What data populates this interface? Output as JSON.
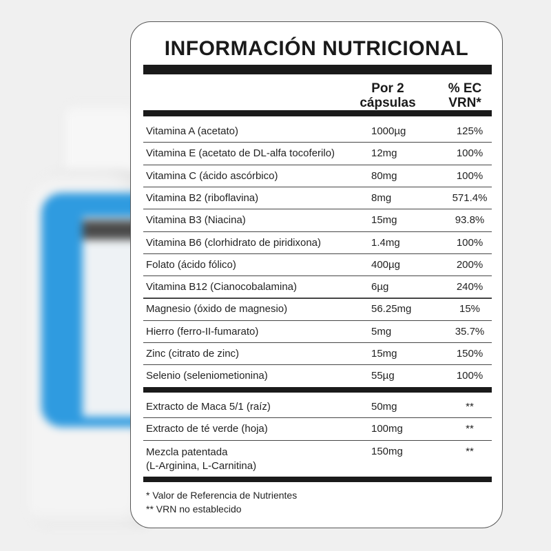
{
  "title": "INFORMACIÓN NUTRICIONAL",
  "headers": {
    "amount": "Por 2 cápsulas",
    "vrn": "% EC VRN*"
  },
  "rows": [
    {
      "name": "Vitamina A (acetato)",
      "amount": "1000µg",
      "vrn": "125%"
    },
    {
      "name": "Vitamina E (acetato de DL-alfa tocoferilo)",
      "amount": "12mg",
      "vrn": "100%"
    },
    {
      "name": "Vitamina C (ácido ascórbico)",
      "amount": "80mg",
      "vrn": "100%"
    },
    {
      "name": "Vitamina B2 (riboflavina)",
      "amount": "8mg",
      "vrn": "571.4%"
    },
    {
      "name": "Vitamina B3 (Niacina)",
      "amount": "15mg",
      "vrn": "93.8%"
    },
    {
      "name": "Vitamina B6 (clorhidrato de piridixona)",
      "amount": "1.4mg",
      "vrn": "100%"
    },
    {
      "name": "Folato (ácido fólico)",
      "amount": "400µg",
      "vrn": "200%"
    },
    {
      "name": "Vitamina B12 (Cianocobalamina)",
      "amount": "6µg",
      "vrn": "240%"
    },
    {
      "name": "Magnesio (óxido de magnesio)",
      "amount": "56.25mg",
      "vrn": "15%"
    },
    {
      "name": "Hierro (ferro-II-fumarato)",
      "amount": "5mg",
      "vrn": "35.7%"
    },
    {
      "name": "Zinc (citrato de zinc)",
      "amount": "15mg",
      "vrn": "150%"
    },
    {
      "name": "Selenio (seleniometionina)",
      "amount": "55µg",
      "vrn": "100%"
    }
  ],
  "extras": [
    {
      "name": "Extracto de Maca 5/1 (raíz)",
      "amount": "50mg",
      "vrn": "**"
    },
    {
      "name": "Extracto de té verde (hoja)",
      "amount": "100mg",
      "vrn": "**"
    },
    {
      "name": "Mezcla patentada\n(L-Arginina, L-Carnitina)",
      "amount": "150mg",
      "vrn": "**"
    }
  ],
  "notes": [
    "* Valor de Referencia de Nutrientes",
    "** VRN no establecido"
  ]
}
